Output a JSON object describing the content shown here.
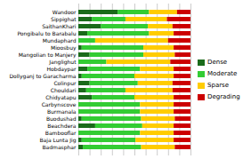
{
  "chart_data": {
    "type": "bar",
    "orientation": "horizontal",
    "stacked": true,
    "categories": [
      "Badmasphar",
      "Baja Lunta Jig",
      "Bambooflar",
      "Beachdera",
      "Buodushad",
      "Burmanala",
      "Carbynscove",
      "Chidyatapu",
      "Chouldari",
      "Colinpur",
      "Dollyganj to Garacharma",
      "Hobdaypar",
      "Janglighut",
      "Mangolian to Manjery",
      "Mioosbuy",
      "Mundaphard",
      "Pongibalu to Barabalu",
      "SaithanKhari",
      "Sippighat",
      "Wandoor"
    ],
    "series": [
      {
        "name": "Dense",
        "color": "#1a6b1a",
        "values": [
          4,
          3,
          0,
          15,
          3,
          0,
          0,
          12,
          7,
          10,
          3,
          8,
          0,
          10,
          3,
          0,
          8,
          20,
          12,
          35
        ]
      },
      {
        "name": "Moderate",
        "color": "#33cc33",
        "values": [
          52,
          48,
          55,
          42,
          53,
          55,
          55,
          38,
          35,
          43,
          47,
          47,
          25,
          48,
          55,
          15,
          55,
          42,
          30,
          28
        ]
      },
      {
        "name": "Sparse",
        "color": "#ffcc00",
        "values": [
          30,
          34,
          30,
          28,
          30,
          30,
          30,
          35,
          42,
          31,
          35,
          30,
          57,
          28,
          27,
          65,
          22,
          22,
          37,
          25
        ]
      },
      {
        "name": "Degrading",
        "color": "#cc0000",
        "values": [
          14,
          15,
          15,
          15,
          14,
          15,
          15,
          15,
          16,
          16,
          15,
          15,
          18,
          14,
          15,
          20,
          15,
          16,
          21,
          12
        ]
      }
    ],
    "xlim": [
      0,
      100
    ],
    "xticks": [
      0,
      10,
      20,
      30,
      40,
      50,
      60,
      70,
      80,
      90,
      100
    ],
    "grid": true,
    "tick_labels": "y",
    "legend": "right"
  }
}
